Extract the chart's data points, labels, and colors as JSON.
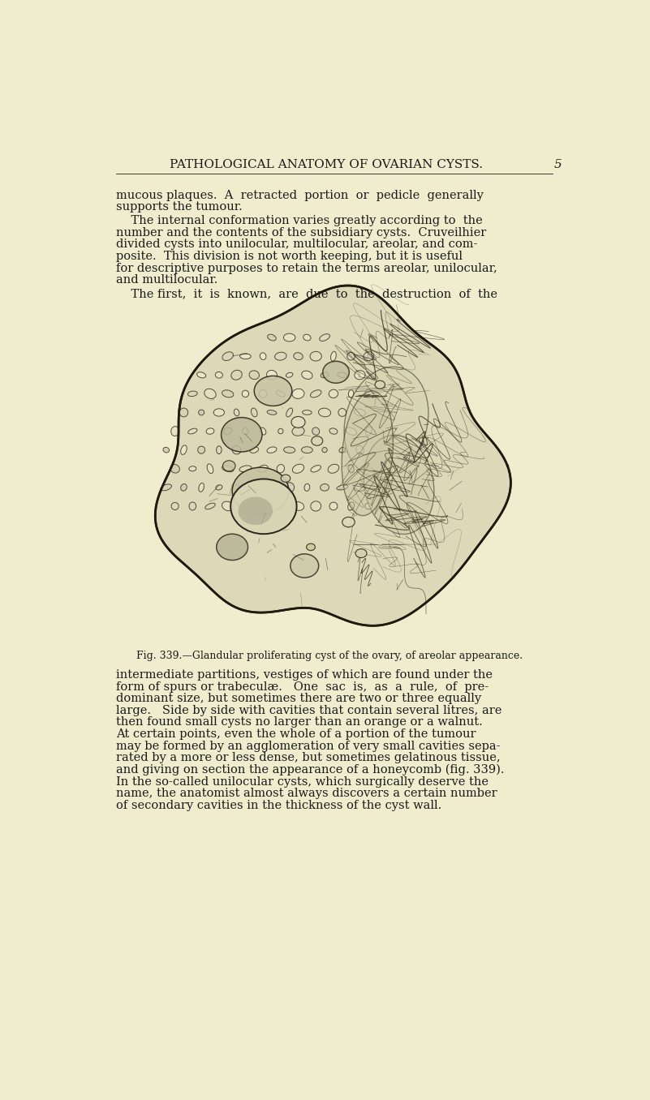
{
  "background_color": "#f0edcf",
  "page_header": "PATHOLOGICAL ANATOMY OF OVARIAN CYSTS.",
  "page_number": "5",
  "header_fontsize": 11,
  "body_fontsize": 10.5,
  "caption_fontsize": 9,
  "text_color": "#1a1a1a",
  "caption": "Fig. 339.—Glandular proliferating cyst of the ovary, of areolar appearance.",
  "top_lines": [
    [
      "mucous plaques.  A  retracted  portion  or  pedicle  generally",
      false
    ],
    [
      "supports the tumour.",
      false
    ],
    [
      "    The internal conformation varies greatly according to  the",
      true
    ],
    [
      "number and the contents of the subsidiary cysts.  Cruveilhier",
      false
    ],
    [
      "divided cysts into unilocular, multilocular, areolar, and com-",
      false
    ],
    [
      "posite.  This division is not worth keeping, but it is useful",
      false
    ],
    [
      "for descriptive purposes to retain the terms areolar, unilocular,",
      false
    ],
    [
      "and multilocular.",
      false
    ],
    [
      "    The first,  it  is  known,  are  due  to  the  destruction  of  the",
      true
    ]
  ],
  "bottom_lines": [
    "intermediate partitions, vestiges of which are found under the",
    "form of spurs or trabeculæ.   One  sac  is,  as  a  rule,  of  pre-",
    "dominant size, but sometimes there are two or three equally",
    "large.   Side by side with cavities that contain several litres, are",
    "then found small cysts no larger than an orange or a walnut.",
    "At certain points, even the whole of a portion of the tumour",
    "may be formed by an agglomeration of very small cavities sepa-",
    "rated by a more or less dense, but sometimes gelatinous tissue,",
    "and giving on section the appearance of a honeycomb (fig. 339).",
    "In the so-called unilocular cysts, which surgically deserve the",
    "name, the anatomist almost always discovers a certain number",
    "of secondary cavities in the thickness of the cyst wall."
  ]
}
